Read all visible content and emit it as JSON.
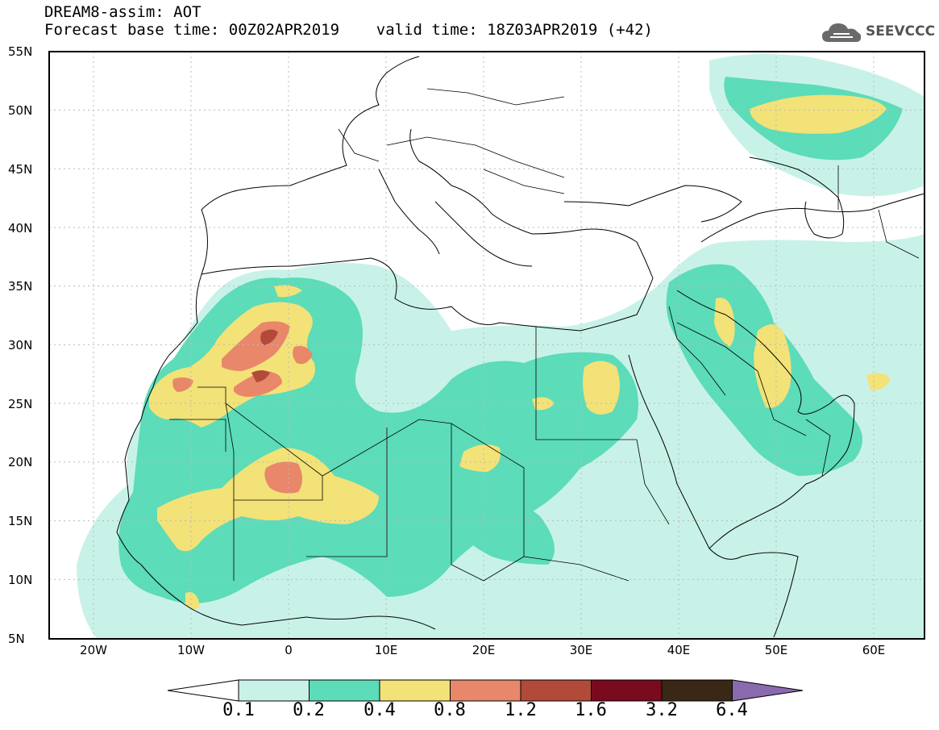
{
  "header": {
    "line1": "DREAM8-assim: AOT",
    "line2": "Forecast base time: 00Z02APR2019    valid time: 18Z03APR2019 (+42)"
  },
  "logo": {
    "text": "SEEVCCC",
    "icon": "cloud-icon"
  },
  "map": {
    "lat_labels": [
      "55N",
      "50N",
      "45N",
      "40N",
      "35N",
      "30N",
      "25N",
      "20N",
      "15N",
      "10N",
      "5N"
    ],
    "lon_labels": [
      "20W",
      "10W",
      "0",
      "10E",
      "20E",
      "30E",
      "40E",
      "50E",
      "60E"
    ],
    "extent": {
      "lon": [
        -25,
        65
      ],
      "lat": [
        5,
        55
      ]
    }
  },
  "colorbar": {
    "labels": [
      "0.1",
      "0.2",
      "0.4",
      "0.8",
      "1.2",
      "1.6",
      "3.2",
      "6.4"
    ],
    "colors": [
      "#ffffff",
      "#c8f2e8",
      "#5cdcb8",
      "#f2e278",
      "#e8876a",
      "#b24a3a",
      "#7a0a1e",
      "#3a2716",
      "#8a6aae"
    ]
  },
  "colors": {
    "aot_0_1": "#c8f2e8",
    "aot_0_2": "#5cdcb8",
    "aot_0_4": "#f2e278",
    "aot_0_8": "#e8876a",
    "aot_1_2": "#b24a3a"
  }
}
